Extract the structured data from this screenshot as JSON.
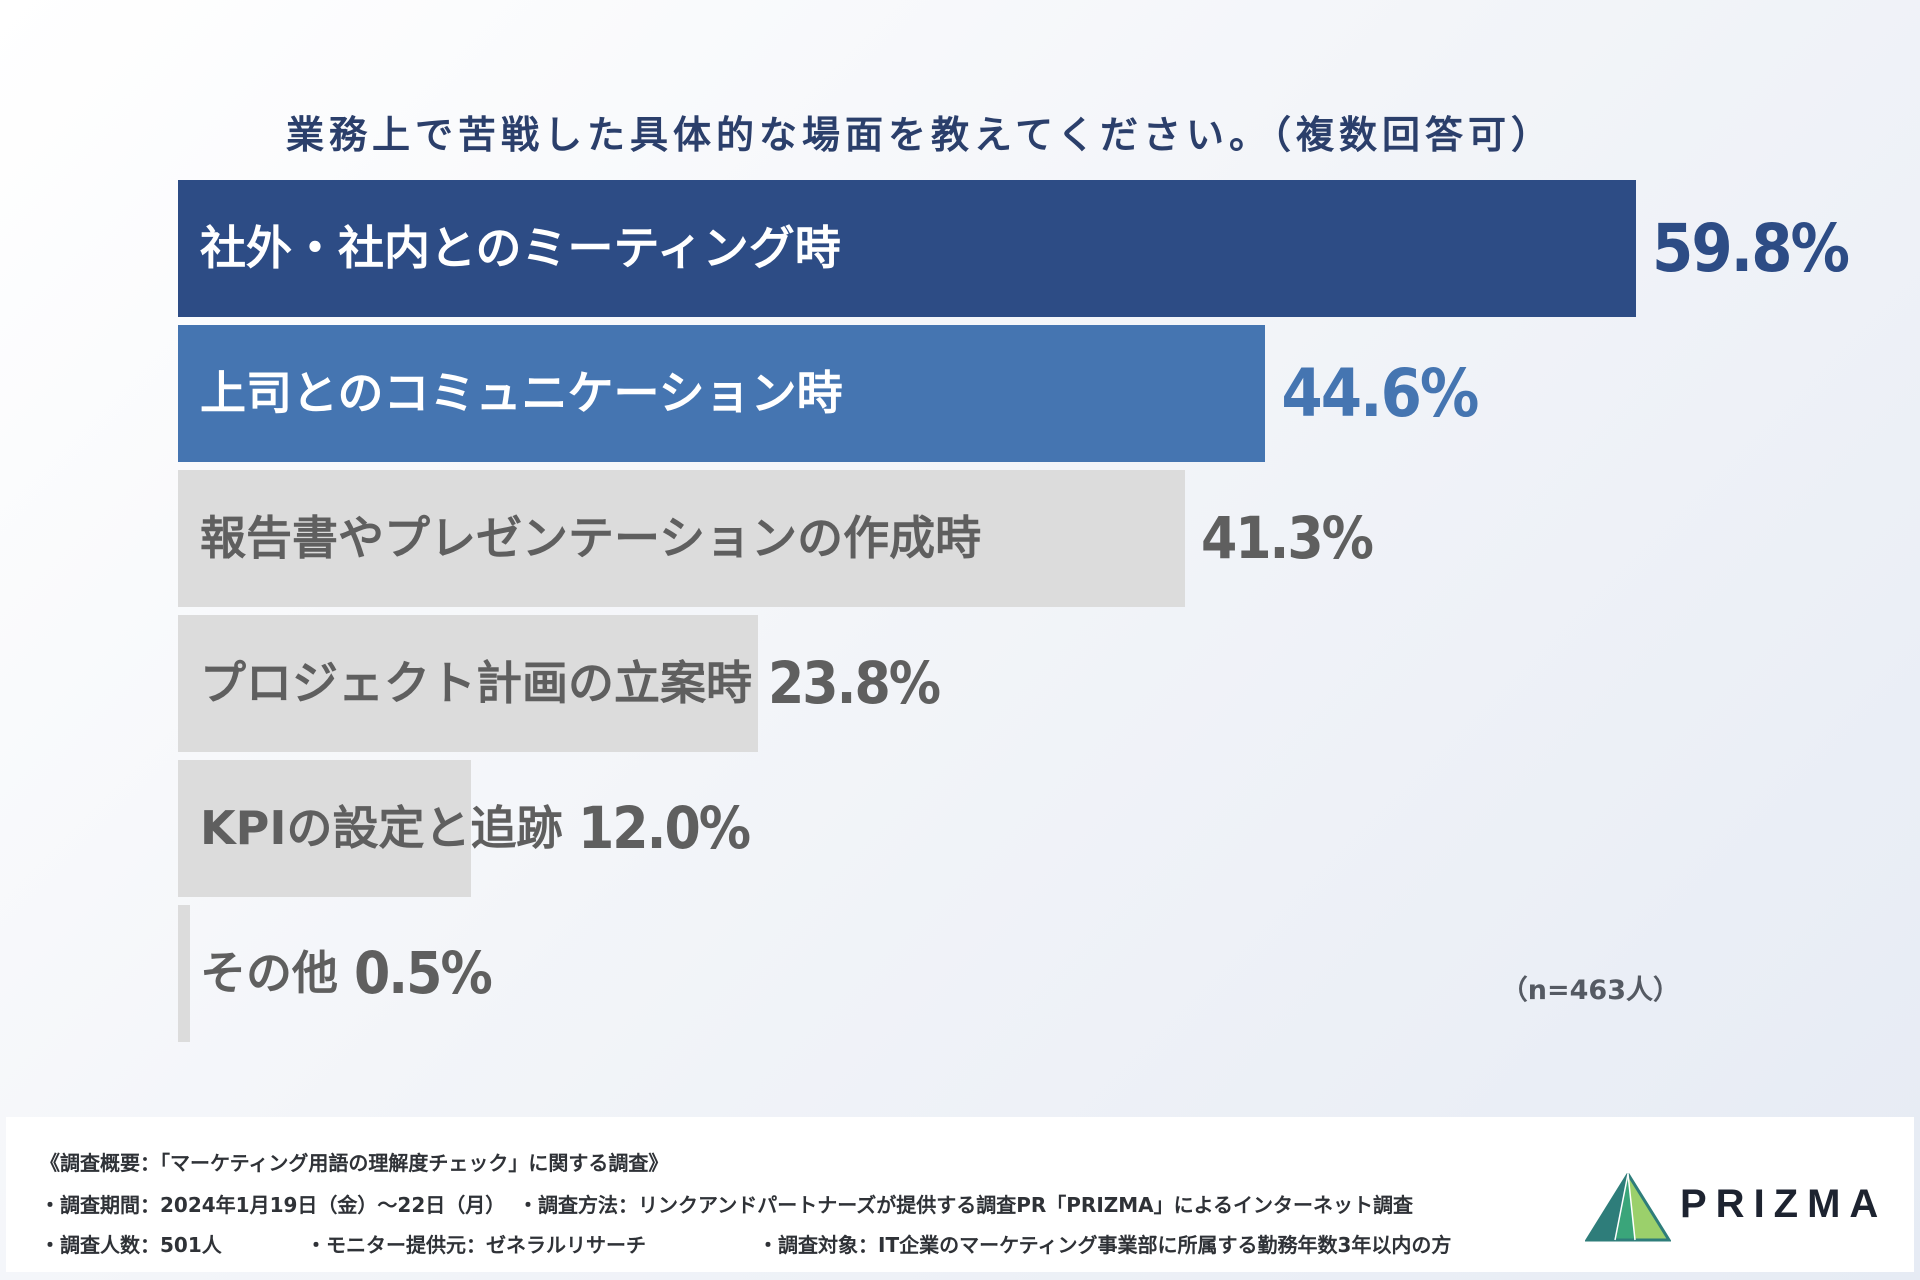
{
  "chart_data": {
    "type": "bar",
    "orientation": "horizontal",
    "title": "業務上で苦戦した具体的な場面を教えてください。（複数回答可）",
    "categories": [
      "社外・社内とのミーティング時",
      "上司とのコミュニケーション時",
      "報告書やプレゼンテーションの作成時",
      "プロジェクト計画の立案時",
      "KPIの設定と追跡",
      "その他"
    ],
    "values": [
      59.8,
      44.6,
      41.3,
      23.8,
      12.0,
      0.5
    ],
    "value_labels": [
      "59.8%",
      "44.6%",
      "41.3%",
      "23.8%",
      "12.0%",
      "0.5%"
    ],
    "xlim": [
      0,
      60
    ],
    "bar_colors": [
      "#2d4c85",
      "#4575b1",
      "#dcdcdc",
      "#dcdcdc",
      "#dcdcdc",
      "#dcdcdc"
    ],
    "label_colors": [
      "#ffffff",
      "#ffffff",
      "#5f5f5f",
      "#5f5f5f",
      "#5f5f5f",
      "#5f5f5f"
    ],
    "value_colors": [
      "#2d4c85",
      "#4575b1",
      "#5f5f5f",
      "#5f5f5f",
      "#5f5f5f",
      "#5f5f5f"
    ],
    "note": "（n=463人）",
    "grid": false,
    "legend": "none"
  },
  "footer": {
    "summary": "《調査概要：「マーケティング用語の理解度チェック」に関する調査》",
    "period": "・調査期間：2024年1月19日（金）〜22日（月）",
    "method": "・調査方法：リンクアンドパートナーズが提供する調査PR「PRIZMA」によるインターネット調査",
    "count": "・調査人数：501人",
    "provider": "・モニター提供元：ゼネラルリサーチ",
    "target": "・調査対象：IT企業のマーケティング事業部に所属する勤務年数3年以内の方"
  },
  "logo": {
    "text": "PRIZMA",
    "icon": "prizma-prism-icon",
    "colors": [
      "#2e7d7a",
      "#3aa57a",
      "#9bd06b"
    ]
  }
}
